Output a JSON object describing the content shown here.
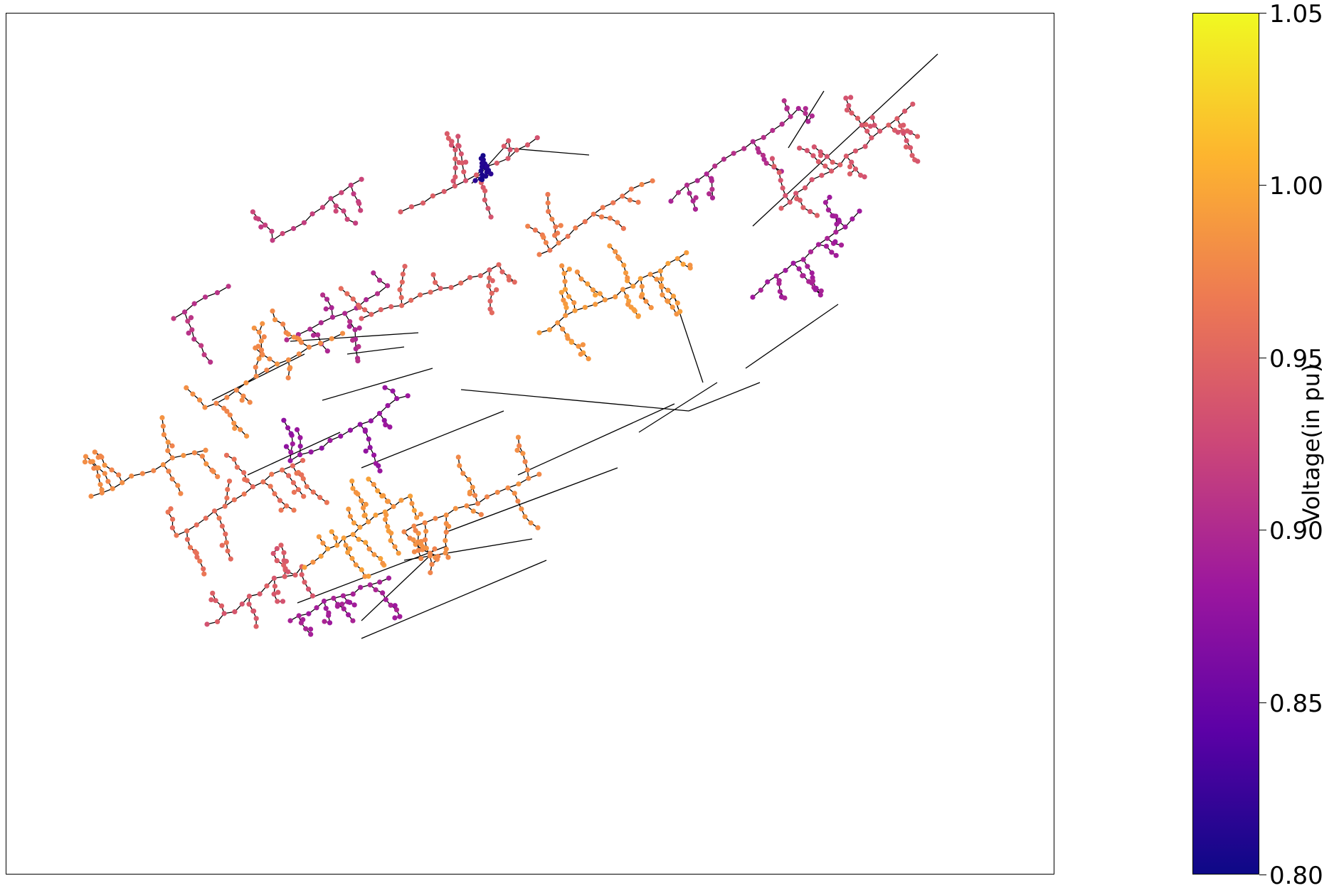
{
  "colorbar": {
    "label": "Voltage(in pu)",
    "ticks": [
      "1.05",
      "1.00",
      "0.95",
      "0.90",
      "0.85",
      "0.80"
    ],
    "min": 0.8,
    "max": 1.05,
    "colormap": "plasma",
    "stops": [
      "#0d0887",
      "#5c01a6",
      "#9c179e",
      "#cc4778",
      "#ed7953",
      "#fdb42f",
      "#f0f921"
    ]
  },
  "network": {
    "edge_color": "#000000",
    "node_count_approx": 1500,
    "regions": [
      {
        "voltage": 0.91
      },
      {
        "voltage": 0.92
      },
      {
        "voltage": 0.9
      },
      {
        "voltage": 0.94
      },
      {
        "voltage": 0.81
      },
      {
        "voltage": 0.97
      },
      {
        "voltage": 0.99
      },
      {
        "voltage": 0.9
      },
      {
        "voltage": 0.94
      },
      {
        "voltage": 0.89
      },
      {
        "voltage": 0.95
      },
      {
        "voltage": 0.98
      },
      {
        "voltage": 0.88
      },
      {
        "voltage": 0.96
      },
      {
        "voltage": 0.98
      },
      {
        "voltage": 0.89
      },
      {
        "voltage": 0.94
      },
      {
        "voltage": 0.99
      },
      {
        "voltage": 0.98
      }
    ]
  }
}
